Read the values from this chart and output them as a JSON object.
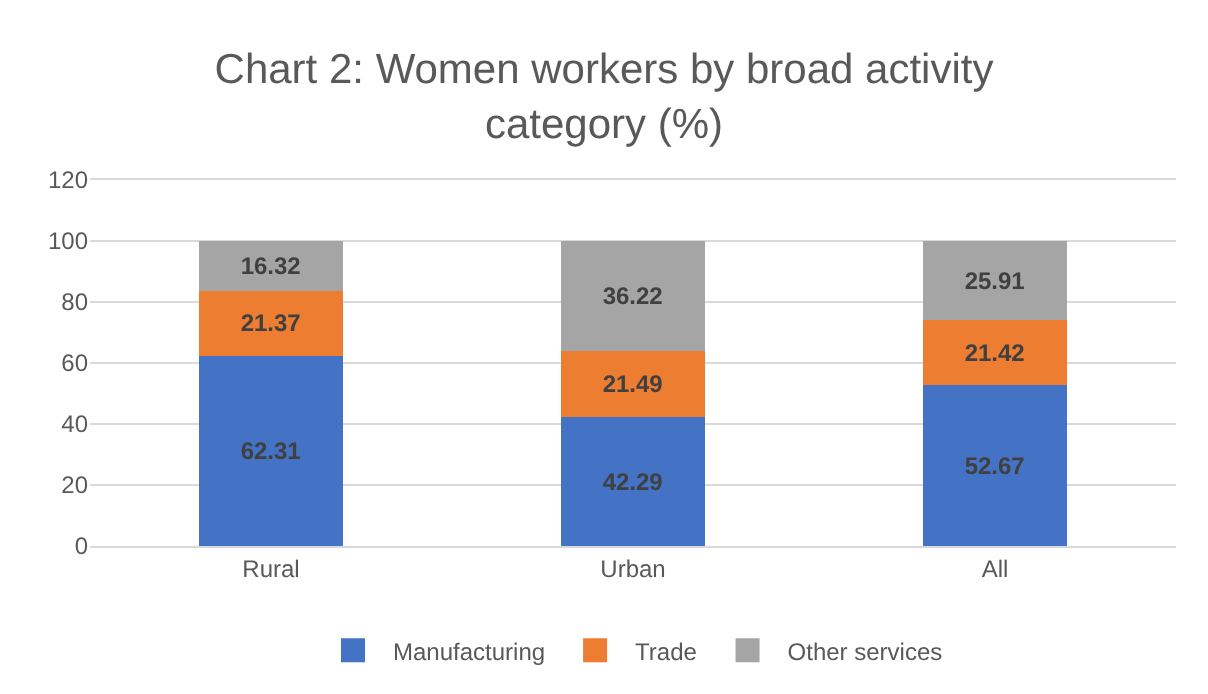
{
  "chart_data": {
    "type": "bar",
    "title": "Chart 2: Women workers by broad activity category (%)",
    "categories": [
      "Rural",
      "Urban",
      "All"
    ],
    "series": [
      {
        "name": "Manufacturing",
        "color": "#4472c4",
        "values": [
          62.31,
          42.29,
          52.67
        ]
      },
      {
        "name": "Trade",
        "color": "#ed7d31",
        "values": [
          21.37,
          21.49,
          21.42
        ]
      },
      {
        "name": "Other services",
        "color": "#a5a5a5",
        "values": [
          16.32,
          36.22,
          25.91
        ]
      }
    ],
    "stacked": true,
    "data_labels": true,
    "ylim": [
      0,
      120
    ],
    "yticks": [
      0,
      20,
      40,
      60,
      80,
      100,
      120
    ],
    "grid": "y",
    "legend": "bottom"
  }
}
